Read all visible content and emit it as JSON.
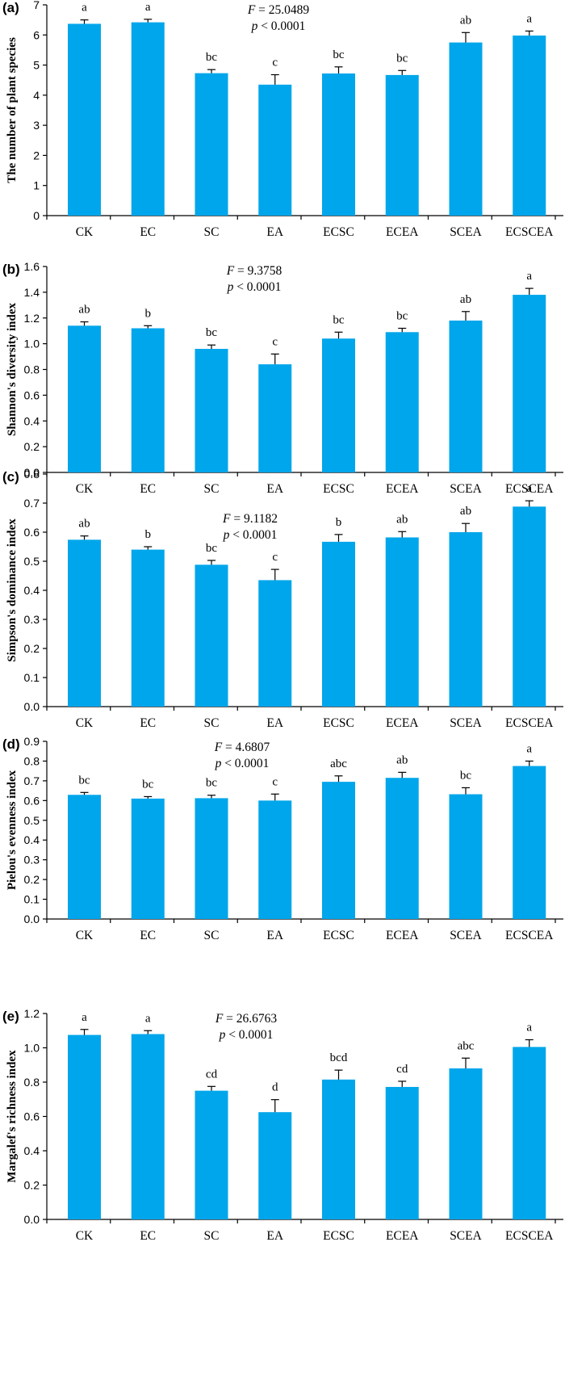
{
  "chart_data": [
    {
      "type": "bar",
      "panel_label": "(a)",
      "ylabel": "The number of plant species",
      "xlabel": "",
      "ylim": [
        0,
        7
      ],
      "yticks": [
        "0",
        "1",
        "2",
        "3",
        "4",
        "5",
        "6",
        "7"
      ],
      "categories": [
        "CK",
        "EC",
        "SC",
        "EA",
        "ECSC",
        "ECEA",
        "SCEA",
        "ECSCEA"
      ],
      "values": [
        6.37,
        6.42,
        4.73,
        4.35,
        4.72,
        4.67,
        5.75,
        5.98
      ],
      "errors": [
        0.13,
        0.1,
        0.12,
        0.33,
        0.22,
        0.15,
        0.33,
        0.15
      ],
      "letters": [
        "a",
        "a",
        "bc",
        "c",
        "bc",
        "bc",
        "ab",
        "a"
      ],
      "stat_f": "F",
      "stat_f_value": " = 25.0489",
      "stat_p": "p",
      "stat_p_value": " < 0.0001"
    },
    {
      "type": "bar",
      "panel_label": "(b)",
      "ylabel": "Shannon's diversity index",
      "xlabel": "",
      "ylim": [
        0,
        1.6
      ],
      "yticks": [
        "0.0",
        "0.2",
        "0.4",
        "0.6",
        "0.8",
        "1.0",
        "1.2",
        "1.4",
        "1.6"
      ],
      "categories": [
        "CK",
        "EC",
        "SC",
        "EA",
        "ECSC",
        "ECEA",
        "SCEA",
        "ECSCEA"
      ],
      "values": [
        1.14,
        1.12,
        0.96,
        0.84,
        1.04,
        1.09,
        1.18,
        1.38
      ],
      "errors": [
        0.03,
        0.02,
        0.03,
        0.08,
        0.05,
        0.03,
        0.07,
        0.05
      ],
      "letters": [
        "ab",
        "b",
        "bc",
        "c",
        "bc",
        "bc",
        "ab",
        "a"
      ],
      "stat_f": "F",
      "stat_f_value": " = 9.3758",
      "stat_p": "p",
      "stat_p_value": " < 0.0001"
    },
    {
      "type": "bar",
      "panel_label": "(c)",
      "ylabel": "Simpson's dominance index",
      "xlabel": "",
      "ylim": [
        0,
        0.8
      ],
      "yticks": [
        "0.0",
        "0.1",
        "0.2",
        "0.3",
        "0.4",
        "0.5",
        "0.6",
        "0.7",
        "0.8"
      ],
      "categories": [
        "CK",
        "EC",
        "SC",
        "EA",
        "ECSC",
        "ECEA",
        "SCEA",
        "ECSCEA"
      ],
      "values": [
        0.574,
        0.54,
        0.488,
        0.435,
        0.567,
        0.582,
        0.6,
        0.688
      ],
      "errors": [
        0.013,
        0.01,
        0.015,
        0.037,
        0.025,
        0.02,
        0.03,
        0.02
      ],
      "letters": [
        "ab",
        "b",
        "bc",
        "c",
        "b",
        "ab",
        "ab",
        "a"
      ],
      "stat_f": "F",
      "stat_f_value": " = 9.1182",
      "stat_p": "p",
      "stat_p_value": " < 0.0001"
    },
    {
      "type": "bar",
      "panel_label": "(d)",
      "ylabel": "Pielou's evenness index",
      "xlabel": "",
      "ylim": [
        0,
        0.9
      ],
      "yticks": [
        "0.0",
        "0.1",
        "0.2",
        "0.3",
        "0.4",
        "0.5",
        "0.6",
        "0.7",
        "0.8",
        "0.9"
      ],
      "categories": [
        "CK",
        "EC",
        "SC",
        "EA",
        "ECSC",
        "ECEA",
        "SCEA",
        "ECSCEA"
      ],
      "values": [
        0.629,
        0.61,
        0.612,
        0.6,
        0.695,
        0.715,
        0.632,
        0.775
      ],
      "errors": [
        0.012,
        0.01,
        0.015,
        0.033,
        0.03,
        0.028,
        0.033,
        0.025
      ],
      "letters": [
        "bc",
        "bc",
        "bc",
        "c",
        "abc",
        "ab",
        "bc",
        "a"
      ],
      "stat_f": "F",
      "stat_f_value": " = 4.6807",
      "stat_p": "p",
      "stat_p_value": " < 0.0001"
    },
    {
      "type": "bar",
      "panel_label": "(e)",
      "ylabel": "Margalef's richness index",
      "xlabel": "",
      "ylim": [
        0,
        1.2
      ],
      "yticks": [
        "0.0",
        "0.2",
        "0.4",
        "0.6",
        "0.8",
        "1.0",
        "1.2"
      ],
      "categories": [
        "CK",
        "EC",
        "SC",
        "EA",
        "ECSC",
        "ECEA",
        "SCEA",
        "ECSCEA"
      ],
      "values": [
        1.075,
        1.08,
        0.75,
        0.625,
        0.815,
        0.772,
        0.88,
        1.005
      ],
      "errors": [
        0.032,
        0.02,
        0.025,
        0.073,
        0.055,
        0.033,
        0.06,
        0.042
      ],
      "letters": [
        "a",
        "a",
        "cd",
        "d",
        "bcd",
        "cd",
        "abc",
        "a"
      ],
      "stat_f": "F",
      "stat_f_value": " = 26.6763",
      "stat_p": "p",
      "stat_p_value": " < 0.0001"
    }
  ],
  "colors": {
    "bar": "#00a6eb",
    "axis": "#000000",
    "text": "#000000"
  }
}
